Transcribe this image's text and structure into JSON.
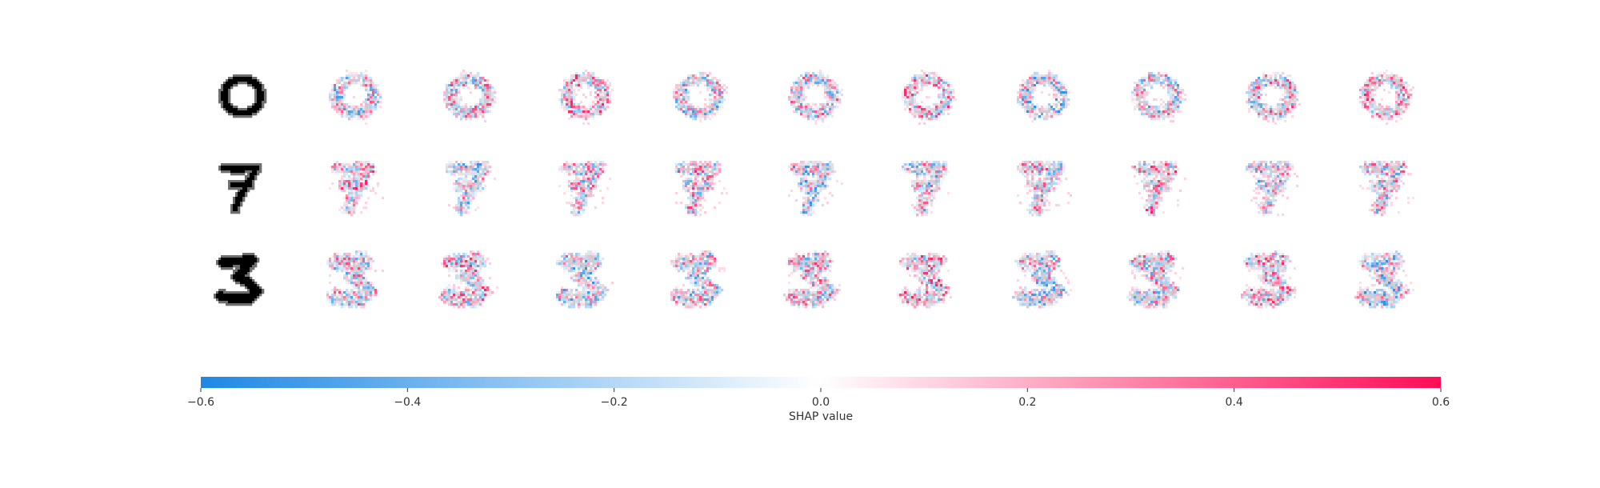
{
  "chart_data": {
    "type": "heatmap",
    "title": "",
    "digits": [
      "0",
      "7",
      "3"
    ],
    "panels_per_row": 10,
    "colorbar": {
      "label": "SHAP value",
      "range": [
        -0.6,
        0.6
      ],
      "ticks": [
        -0.6,
        -0.4,
        -0.2,
        0.0,
        0.2,
        0.4,
        0.6
      ],
      "tick_labels": [
        "−0.6",
        "−0.4",
        "−0.2",
        "0.0",
        "0.2",
        "0.4",
        "0.6"
      ],
      "color_negative": "#1E88E5",
      "color_zero": "#FFFFFF",
      "color_positive": "#FF0D57"
    }
  }
}
